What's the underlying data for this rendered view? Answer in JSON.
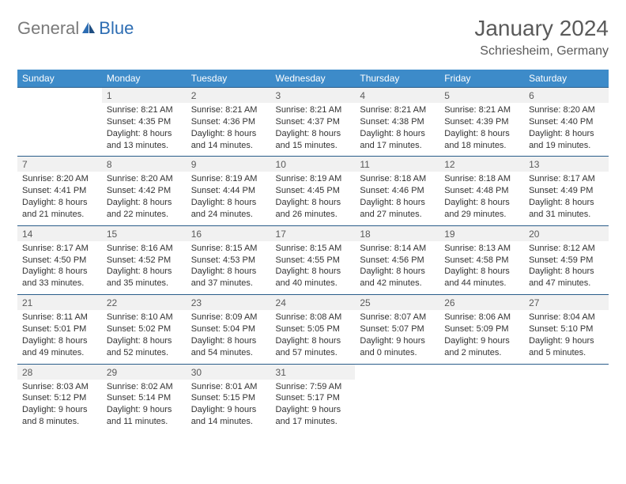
{
  "logo": {
    "general": "General",
    "blue": "Blue"
  },
  "title": "January 2024",
  "location": "Schriesheim, Germany",
  "colors": {
    "header_bg": "#3d8bc9",
    "header_text": "#ffffff",
    "daynum_bg": "#f1f1f1",
    "daynum_text": "#5a5a5a",
    "border": "#2a5d8a",
    "body_text": "#333333",
    "title_text": "#5a5a5a",
    "logo_gray": "#7a7a7a",
    "logo_blue": "#2d6db3"
  },
  "typography": {
    "title_fontsize": 28,
    "location_fontsize": 16,
    "dayhead_fontsize": 12,
    "daynum_fontsize": 12,
    "cell_fontsize": 11
  },
  "day_headers": [
    "Sunday",
    "Monday",
    "Tuesday",
    "Wednesday",
    "Thursday",
    "Friday",
    "Saturday"
  ],
  "weeks": [
    {
      "nums": [
        "",
        "1",
        "2",
        "3",
        "4",
        "5",
        "6"
      ],
      "cells": [
        {
          "sunrise": "",
          "sunset": "",
          "daylight": ""
        },
        {
          "sunrise": "Sunrise: 8:21 AM",
          "sunset": "Sunset: 4:35 PM",
          "daylight": "Daylight: 8 hours and 13 minutes."
        },
        {
          "sunrise": "Sunrise: 8:21 AM",
          "sunset": "Sunset: 4:36 PM",
          "daylight": "Daylight: 8 hours and 14 minutes."
        },
        {
          "sunrise": "Sunrise: 8:21 AM",
          "sunset": "Sunset: 4:37 PM",
          "daylight": "Daylight: 8 hours and 15 minutes."
        },
        {
          "sunrise": "Sunrise: 8:21 AM",
          "sunset": "Sunset: 4:38 PM",
          "daylight": "Daylight: 8 hours and 17 minutes."
        },
        {
          "sunrise": "Sunrise: 8:21 AM",
          "sunset": "Sunset: 4:39 PM",
          "daylight": "Daylight: 8 hours and 18 minutes."
        },
        {
          "sunrise": "Sunrise: 8:20 AM",
          "sunset": "Sunset: 4:40 PM",
          "daylight": "Daylight: 8 hours and 19 minutes."
        }
      ]
    },
    {
      "nums": [
        "7",
        "8",
        "9",
        "10",
        "11",
        "12",
        "13"
      ],
      "cells": [
        {
          "sunrise": "Sunrise: 8:20 AM",
          "sunset": "Sunset: 4:41 PM",
          "daylight": "Daylight: 8 hours and 21 minutes."
        },
        {
          "sunrise": "Sunrise: 8:20 AM",
          "sunset": "Sunset: 4:42 PM",
          "daylight": "Daylight: 8 hours and 22 minutes."
        },
        {
          "sunrise": "Sunrise: 8:19 AM",
          "sunset": "Sunset: 4:44 PM",
          "daylight": "Daylight: 8 hours and 24 minutes."
        },
        {
          "sunrise": "Sunrise: 8:19 AM",
          "sunset": "Sunset: 4:45 PM",
          "daylight": "Daylight: 8 hours and 26 minutes."
        },
        {
          "sunrise": "Sunrise: 8:18 AM",
          "sunset": "Sunset: 4:46 PM",
          "daylight": "Daylight: 8 hours and 27 minutes."
        },
        {
          "sunrise": "Sunrise: 8:18 AM",
          "sunset": "Sunset: 4:48 PM",
          "daylight": "Daylight: 8 hours and 29 minutes."
        },
        {
          "sunrise": "Sunrise: 8:17 AM",
          "sunset": "Sunset: 4:49 PM",
          "daylight": "Daylight: 8 hours and 31 minutes."
        }
      ]
    },
    {
      "nums": [
        "14",
        "15",
        "16",
        "17",
        "18",
        "19",
        "20"
      ],
      "cells": [
        {
          "sunrise": "Sunrise: 8:17 AM",
          "sunset": "Sunset: 4:50 PM",
          "daylight": "Daylight: 8 hours and 33 minutes."
        },
        {
          "sunrise": "Sunrise: 8:16 AM",
          "sunset": "Sunset: 4:52 PM",
          "daylight": "Daylight: 8 hours and 35 minutes."
        },
        {
          "sunrise": "Sunrise: 8:15 AM",
          "sunset": "Sunset: 4:53 PM",
          "daylight": "Daylight: 8 hours and 37 minutes."
        },
        {
          "sunrise": "Sunrise: 8:15 AM",
          "sunset": "Sunset: 4:55 PM",
          "daylight": "Daylight: 8 hours and 40 minutes."
        },
        {
          "sunrise": "Sunrise: 8:14 AM",
          "sunset": "Sunset: 4:56 PM",
          "daylight": "Daylight: 8 hours and 42 minutes."
        },
        {
          "sunrise": "Sunrise: 8:13 AM",
          "sunset": "Sunset: 4:58 PM",
          "daylight": "Daylight: 8 hours and 44 minutes."
        },
        {
          "sunrise": "Sunrise: 8:12 AM",
          "sunset": "Sunset: 4:59 PM",
          "daylight": "Daylight: 8 hours and 47 minutes."
        }
      ]
    },
    {
      "nums": [
        "21",
        "22",
        "23",
        "24",
        "25",
        "26",
        "27"
      ],
      "cells": [
        {
          "sunrise": "Sunrise: 8:11 AM",
          "sunset": "Sunset: 5:01 PM",
          "daylight": "Daylight: 8 hours and 49 minutes."
        },
        {
          "sunrise": "Sunrise: 8:10 AM",
          "sunset": "Sunset: 5:02 PM",
          "daylight": "Daylight: 8 hours and 52 minutes."
        },
        {
          "sunrise": "Sunrise: 8:09 AM",
          "sunset": "Sunset: 5:04 PM",
          "daylight": "Daylight: 8 hours and 54 minutes."
        },
        {
          "sunrise": "Sunrise: 8:08 AM",
          "sunset": "Sunset: 5:05 PM",
          "daylight": "Daylight: 8 hours and 57 minutes."
        },
        {
          "sunrise": "Sunrise: 8:07 AM",
          "sunset": "Sunset: 5:07 PM",
          "daylight": "Daylight: 9 hours and 0 minutes."
        },
        {
          "sunrise": "Sunrise: 8:06 AM",
          "sunset": "Sunset: 5:09 PM",
          "daylight": "Daylight: 9 hours and 2 minutes."
        },
        {
          "sunrise": "Sunrise: 8:04 AM",
          "sunset": "Sunset: 5:10 PM",
          "daylight": "Daylight: 9 hours and 5 minutes."
        }
      ]
    },
    {
      "nums": [
        "28",
        "29",
        "30",
        "31",
        "",
        "",
        ""
      ],
      "cells": [
        {
          "sunrise": "Sunrise: 8:03 AM",
          "sunset": "Sunset: 5:12 PM",
          "daylight": "Daylight: 9 hours and 8 minutes."
        },
        {
          "sunrise": "Sunrise: 8:02 AM",
          "sunset": "Sunset: 5:14 PM",
          "daylight": "Daylight: 9 hours and 11 minutes."
        },
        {
          "sunrise": "Sunrise: 8:01 AM",
          "sunset": "Sunset: 5:15 PM",
          "daylight": "Daylight: 9 hours and 14 minutes."
        },
        {
          "sunrise": "Sunrise: 7:59 AM",
          "sunset": "Sunset: 5:17 PM",
          "daylight": "Daylight: 9 hours and 17 minutes."
        },
        {
          "sunrise": "",
          "sunset": "",
          "daylight": ""
        },
        {
          "sunrise": "",
          "sunset": "",
          "daylight": ""
        },
        {
          "sunrise": "",
          "sunset": "",
          "daylight": ""
        }
      ]
    }
  ]
}
